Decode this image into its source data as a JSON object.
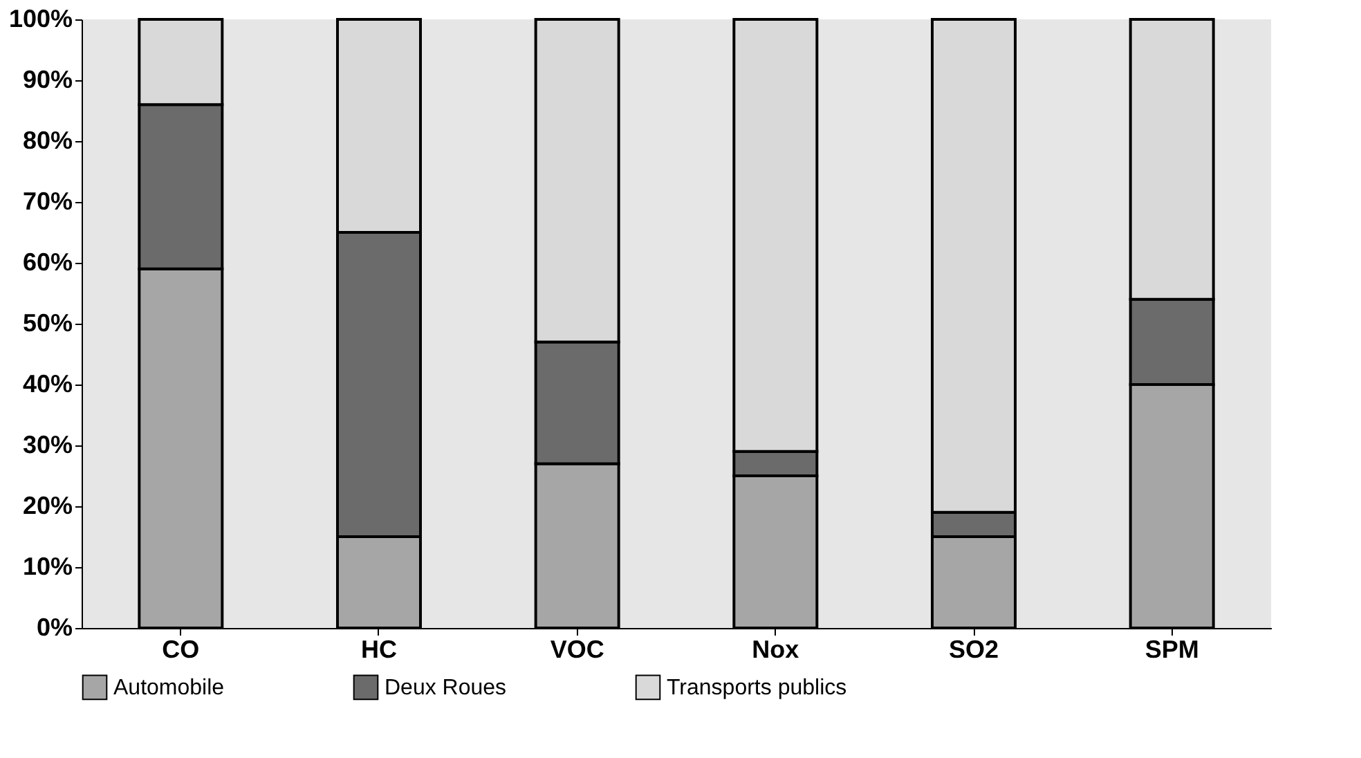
{
  "chart_data": {
    "type": "bar",
    "stacked": true,
    "categories": [
      "CO",
      "HC",
      "VOC",
      "Nox",
      "SO2",
      "SPM"
    ],
    "series": [
      {
        "name": "Automobile",
        "color": "#a6a6a6",
        "values": [
          59,
          15,
          27,
          25,
          15,
          40
        ]
      },
      {
        "name": "Deux Roues",
        "color": "#6b6b6b",
        "values": [
          27,
          50,
          20,
          4,
          4,
          14
        ]
      },
      {
        "name": "Transports publics",
        "color": "#d9d9d9",
        "values": [
          14,
          35,
          53,
          71,
          81,
          46
        ]
      }
    ],
    "ylim": [
      0,
      100
    ],
    "yticks": [
      {
        "value": 0,
        "label": "0%"
      },
      {
        "value": 10,
        "label": "10%"
      },
      {
        "value": 20,
        "label": "20%"
      },
      {
        "value": 30,
        "label": "30%"
      },
      {
        "value": 40,
        "label": "40%"
      },
      {
        "value": 50,
        "label": "50%"
      },
      {
        "value": 60,
        "label": "60%"
      },
      {
        "value": 70,
        "label": "70%"
      },
      {
        "value": 80,
        "label": "80%"
      },
      {
        "value": 90,
        "label": "90%"
      },
      {
        "value": 100,
        "label": "100%"
      }
    ],
    "grid": false,
    "legend": "bottom"
  }
}
